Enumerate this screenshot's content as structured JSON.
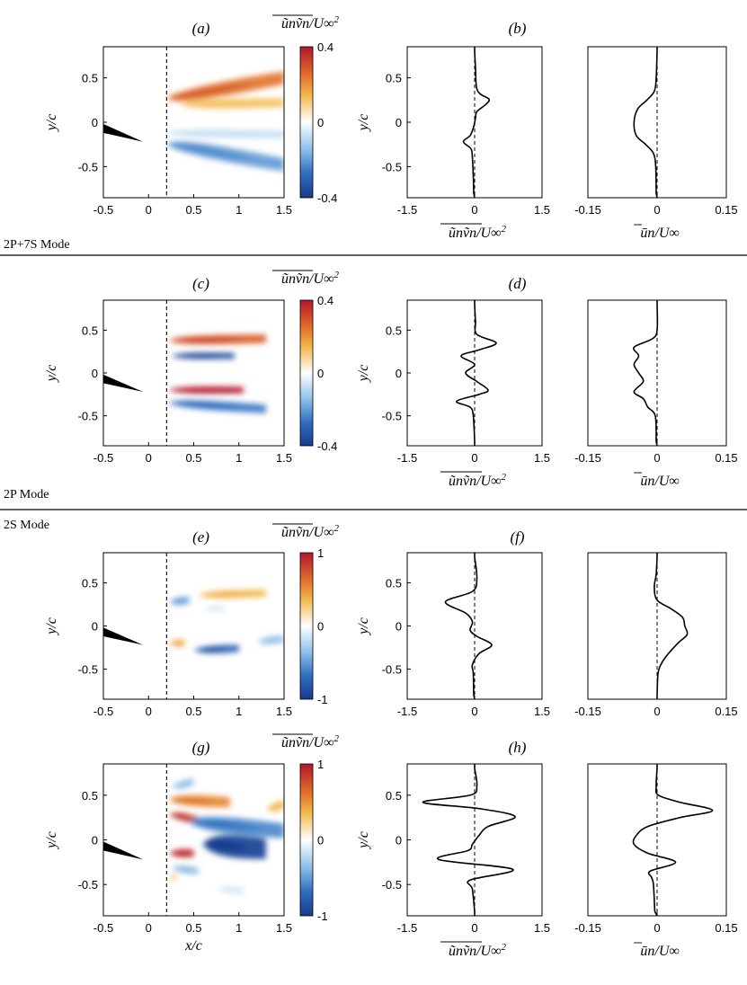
{
  "colors": {
    "positive": "#b2182b",
    "positive_mid": "#e8a23a",
    "negative": "#1f4fa0",
    "negative_mid": "#7fb3e0",
    "line": "#000000"
  },
  "mode_labels": [
    "2P+7S Mode",
    "2P Mode",
    "2S Mode"
  ],
  "chart_data": [
    {
      "type": "heatmap",
      "panel": "(a)",
      "title": "ũnṽn/U∞²",
      "colorbar_ticks": [
        "0.4",
        "0",
        "-0.4"
      ],
      "clim": [
        -0.4,
        0.4
      ],
      "xlim": [
        -0.5,
        1.5
      ],
      "ylim": [
        -0.85,
        0.85
      ],
      "x_ticks": [
        "-0.5",
        "0",
        "0.5",
        "1",
        "1.5"
      ],
      "y_ticks": [
        "0.5",
        "0",
        "-0.5"
      ],
      "xlabel": "",
      "ylabel": "y/c",
      "dashed_x": 0.2,
      "blobs": [
        {
          "x0": 0.2,
          "x1": 1.5,
          "y0": 0.27,
          "y1": 0.5,
          "w": 0.09,
          "value": 0.3
        },
        {
          "x0": 0.35,
          "x1": 1.5,
          "y0": 0.2,
          "y1": 0.22,
          "w": 0.06,
          "value": 0.18
        },
        {
          "x0": 0.2,
          "x1": 1.5,
          "y0": -0.12,
          "y1": -0.14,
          "w": 0.05,
          "value": -0.1
        },
        {
          "x0": 0.2,
          "x1": 1.5,
          "y0": -0.25,
          "y1": -0.48,
          "w": 0.09,
          "value": -0.25
        }
      ]
    },
    {
      "type": "line",
      "panel": "(b)",
      "xlabel": "ũnṽn/U∞²",
      "ylabel": "y/c",
      "xlim": [
        -1.5,
        1.5
      ],
      "ylim": [
        -0.85,
        0.85
      ],
      "x_ticks": [
        "-1.5",
        "0",
        "1.5"
      ],
      "y_ticks": [
        "0.5",
        "0",
        "-0.5"
      ],
      "y": [
        -0.8,
        -0.6,
        -0.4,
        -0.3,
        -0.22,
        -0.15,
        -0.05,
        0.05,
        0.12,
        0.2,
        0.26,
        0.32,
        0.4,
        0.6,
        0.8
      ],
      "values": [
        -0.02,
        -0.03,
        -0.05,
        -0.08,
        -0.25,
        -0.1,
        -0.02,
        0.02,
        0.05,
        0.25,
        0.32,
        0.12,
        0.04,
        0.02,
        0.0
      ]
    },
    {
      "type": "line",
      "panel": "(b)",
      "xlabel": "ūn/U∞",
      "ylabel": "",
      "xlim": [
        -0.15,
        0.15
      ],
      "ylim": [
        -0.85,
        0.85
      ],
      "x_ticks": [
        "-0.15",
        "0",
        "0.15"
      ],
      "y_ticks": [],
      "y": [
        -0.8,
        -0.5,
        -0.35,
        -0.25,
        -0.15,
        0.0,
        0.15,
        0.25,
        0.35,
        0.5,
        0.8
      ],
      "values": [
        -0.002,
        -0.003,
        -0.008,
        -0.025,
        -0.045,
        -0.05,
        -0.042,
        -0.022,
        -0.006,
        -0.002,
        0.0
      ]
    },
    {
      "type": "heatmap",
      "panel": "(c)",
      "title": "ũnṽn/U∞²",
      "colorbar_ticks": [
        "0.4",
        "0",
        "-0.4"
      ],
      "clim": [
        -0.4,
        0.4
      ],
      "xlim": [
        -0.5,
        1.5
      ],
      "ylim": [
        -0.85,
        0.85
      ],
      "x_ticks": [
        "-0.5",
        "0",
        "0.5",
        "1",
        "1.5"
      ],
      "y_ticks": [
        "0.5",
        "0",
        "-0.5"
      ],
      "xlabel": "",
      "ylabel": "y/c",
      "dashed_x": 0.2,
      "blobs": [
        {
          "x0": 0.22,
          "x1": 1.3,
          "y0": 0.38,
          "y1": 0.4,
          "w": 0.06,
          "value": 0.33
        },
        {
          "x0": 0.25,
          "x1": 0.95,
          "y0": 0.2,
          "y1": 0.2,
          "w": 0.04,
          "value": -0.38
        },
        {
          "x0": 0.22,
          "x1": 1.05,
          "y0": -0.2,
          "y1": -0.2,
          "w": 0.045,
          "value": 0.4
        },
        {
          "x0": 0.22,
          "x1": 1.3,
          "y0": -0.35,
          "y1": -0.42,
          "w": 0.06,
          "value": -0.3
        }
      ]
    },
    {
      "type": "line",
      "panel": "(d)",
      "xlabel": "ũnṽn/U∞²",
      "ylabel": "y/c",
      "xlim": [
        -1.5,
        1.5
      ],
      "ylim": [
        -0.85,
        0.85
      ],
      "x_ticks": [
        "-1.5",
        "0",
        "1.5"
      ],
      "y_ticks": [
        "0.5",
        "0",
        "-0.5"
      ],
      "y": [
        -0.8,
        -0.5,
        -0.4,
        -0.33,
        -0.25,
        -0.2,
        -0.1,
        0.0,
        0.1,
        0.2,
        0.27,
        0.35,
        0.45,
        0.6,
        0.8
      ],
      "values": [
        0.0,
        -0.03,
        -0.1,
        -0.4,
        0.1,
        0.3,
        0.05,
        -0.2,
        0.0,
        -0.3,
        0.1,
        0.48,
        0.05,
        0.02,
        0.0
      ]
    },
    {
      "type": "line",
      "panel": "(d)",
      "xlabel": "ūn/U∞",
      "ylabel": "",
      "xlim": [
        -0.15,
        0.15
      ],
      "ylim": [
        -0.85,
        0.85
      ],
      "x_ticks": [
        "-0.15",
        "0",
        "0.15"
      ],
      "y_ticks": [],
      "y": [
        -0.8,
        -0.5,
        -0.4,
        -0.3,
        -0.22,
        -0.1,
        0.0,
        0.1,
        0.2,
        0.3,
        0.4,
        0.5,
        0.8
      ],
      "values": [
        -0.002,
        -0.004,
        -0.02,
        -0.03,
        -0.05,
        -0.03,
        -0.04,
        -0.05,
        -0.04,
        -0.05,
        -0.01,
        0.0,
        0.0
      ]
    },
    {
      "type": "heatmap",
      "panel": "(e)",
      "title": "ũnṽn/U∞²",
      "colorbar_ticks": [
        "1",
        "0",
        "-1"
      ],
      "clim": [
        -1,
        1
      ],
      "xlim": [
        -0.5,
        1.5
      ],
      "ylim": [
        -0.85,
        0.85
      ],
      "x_ticks": [
        "-0.5",
        "0",
        "0.5",
        "1",
        "1.5"
      ],
      "y_ticks": [
        "0.5",
        "0",
        "-0.5"
      ],
      "xlabel": "",
      "ylabel": "y/c",
      "dashed_x": 0.2,
      "blobs": [
        {
          "x0": 0.55,
          "x1": 1.3,
          "y0": 0.36,
          "y1": 0.38,
          "w": 0.05,
          "value": 0.55
        },
        {
          "x0": 0.22,
          "x1": 0.45,
          "y0": 0.28,
          "y1": 0.3,
          "w": 0.05,
          "value": -0.6
        },
        {
          "x0": 0.6,
          "x1": 0.85,
          "y0": 0.2,
          "y1": 0.2,
          "w": 0.04,
          "value": -0.15
        },
        {
          "x0": 0.22,
          "x1": 0.4,
          "y0": -0.2,
          "y1": -0.2,
          "w": 0.045,
          "value": 0.6
        },
        {
          "x0": 0.5,
          "x1": 1.0,
          "y0": -0.28,
          "y1": -0.26,
          "w": 0.05,
          "value": -0.85
        },
        {
          "x0": 1.2,
          "x1": 1.5,
          "y0": -0.18,
          "y1": -0.15,
          "w": 0.05,
          "value": -0.45
        }
      ]
    },
    {
      "type": "line",
      "panel": "(f)",
      "xlabel": "",
      "ylabel": "y/c",
      "xlim": [
        -1.5,
        1.5
      ],
      "ylim": [
        -0.85,
        0.85
      ],
      "x_ticks": [
        "-1.5",
        "0",
        "1.5"
      ],
      "y_ticks": [
        "0.5",
        "0",
        "-0.5"
      ],
      "y": [
        -0.8,
        -0.55,
        -0.45,
        -0.32,
        -0.22,
        -0.12,
        -0.05,
        0.05,
        0.15,
        0.28,
        0.4,
        0.55,
        0.8
      ],
      "values": [
        -0.02,
        -0.03,
        -0.05,
        0.1,
        0.38,
        0.05,
        -0.1,
        -0.05,
        -0.2,
        -0.65,
        -0.05,
        0.05,
        0.0
      ]
    },
    {
      "type": "line",
      "panel": "(f)",
      "xlabel": "",
      "ylabel": "",
      "xlim": [
        -0.15,
        0.15
      ],
      "ylim": [
        -0.85,
        0.85
      ],
      "x_ticks": [
        "-0.15",
        "0",
        "0.15"
      ],
      "y_ticks": [],
      "y": [
        -0.8,
        -0.55,
        -0.45,
        -0.35,
        -0.2,
        -0.1,
        0.0,
        0.1,
        0.2,
        0.3,
        0.45,
        0.6,
        0.8
      ],
      "values": [
        0.0,
        0.002,
        0.008,
        0.02,
        0.045,
        0.065,
        0.06,
        0.055,
        0.03,
        0.0,
        -0.006,
        -0.002,
        0.0
      ]
    },
    {
      "type": "heatmap",
      "panel": "(g)",
      "title": "ũnṽn/U∞²",
      "colorbar_ticks": [
        "1",
        "0",
        "-1"
      ],
      "clim": [
        -1,
        1
      ],
      "xlim": [
        -0.5,
        1.5
      ],
      "ylim": [
        -0.85,
        0.85
      ],
      "x_ticks": [
        "-0.5",
        "0",
        "0.5",
        "1",
        "1.5"
      ],
      "y_ticks": [
        "0.5",
        "0",
        "-0.5"
      ],
      "xlabel": "x/c",
      "ylabel": "y/c",
      "dashed_x": 0.2,
      "blobs": [
        {
          "x0": 0.22,
          "x1": 0.9,
          "y0": 0.45,
          "y1": 0.42,
          "w": 0.07,
          "value": 0.7
        },
        {
          "x0": 0.25,
          "x1": 0.5,
          "y0": 0.6,
          "y1": 0.65,
          "w": 0.05,
          "value": -0.45
        },
        {
          "x0": 0.22,
          "x1": 0.55,
          "y0": 0.28,
          "y1": 0.22,
          "w": 0.05,
          "value": 0.9
        },
        {
          "x0": 0.45,
          "x1": 1.5,
          "y0": 0.2,
          "y1": 0.1,
          "w": 0.1,
          "value": -0.7
        },
        {
          "x0": 0.6,
          "x1": 1.3,
          "y0": -0.05,
          "y1": -0.1,
          "w": 0.14,
          "value": -0.95
        },
        {
          "x0": 1.3,
          "x1": 1.5,
          "y0": 0.35,
          "y1": 0.4,
          "w": 0.06,
          "value": 0.5
        },
        {
          "x0": 0.22,
          "x1": 0.5,
          "y0": -0.15,
          "y1": -0.15,
          "w": 0.05,
          "value": 0.95
        },
        {
          "x0": 0.25,
          "x1": 0.55,
          "y0": -0.32,
          "y1": -0.35,
          "w": 0.045,
          "value": -0.5
        },
        {
          "x0": 0.22,
          "x1": 0.3,
          "y0": -0.42,
          "y1": -0.42,
          "w": 0.04,
          "value": 0.5
        },
        {
          "x0": 0.75,
          "x1": 1.05,
          "y0": -0.55,
          "y1": -0.57,
          "w": 0.04,
          "value": -0.2
        }
      ]
    },
    {
      "type": "line",
      "panel": "(h)",
      "xlabel": "ũnṽn/U∞²",
      "ylabel": "y/c",
      "xlim": [
        -1.5,
        1.5
      ],
      "ylim": [
        -0.85,
        0.85
      ],
      "x_ticks": [
        "-1.5",
        "0",
        "1.5"
      ],
      "y_ticks": [
        "0.5",
        "0",
        "-0.5"
      ],
      "y": [
        -0.8,
        -0.55,
        -0.45,
        -0.33,
        -0.22,
        -0.12,
        -0.05,
        0.05,
        0.15,
        0.26,
        0.35,
        0.42,
        0.5,
        0.6,
        0.8
      ],
      "values": [
        0.0,
        -0.05,
        -0.1,
        0.85,
        -0.8,
        -0.15,
        -0.05,
        0.1,
        0.3,
        0.9,
        0.1,
        -1.15,
        -0.1,
        0.05,
        0.0
      ]
    },
    {
      "type": "line",
      "panel": "(h)",
      "xlabel": "ūn/U∞",
      "ylabel": "",
      "xlim": [
        -0.15,
        0.15
      ],
      "ylim": [
        -0.85,
        0.85
      ],
      "x_ticks": [
        "-0.15",
        "0",
        "0.15"
      ],
      "y_ticks": [],
      "y": [
        -0.8,
        -0.5,
        -0.42,
        -0.35,
        -0.25,
        -0.15,
        -0.05,
        0.05,
        0.15,
        0.25,
        0.33,
        0.42,
        0.5,
        0.6,
        0.8
      ],
      "values": [
        -0.005,
        -0.008,
        -0.012,
        -0.015,
        0.04,
        -0.02,
        -0.05,
        -0.045,
        -0.02,
        0.05,
        0.12,
        0.05,
        0.003,
        -0.002,
        0.0
      ]
    }
  ]
}
